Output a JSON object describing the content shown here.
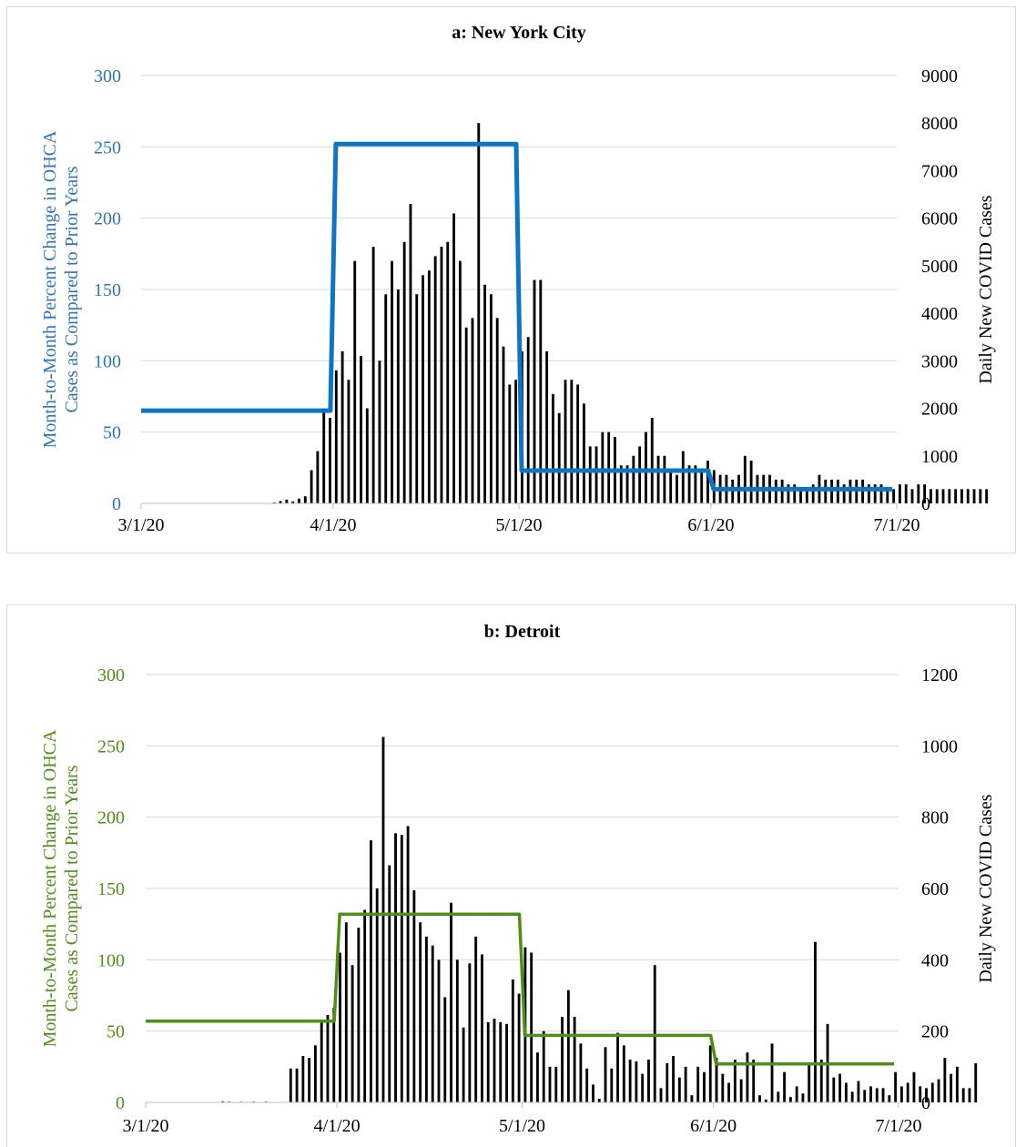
{
  "chart_data": [
    {
      "type": "bar",
      "title": "a: New York City",
      "x_tick_labels": [
        "3/1/20",
        "4/1/20",
        "5/1/20",
        "6/1/20",
        "7/1/20"
      ],
      "x_range": [
        "3/1/20",
        "7/1/20"
      ],
      "ylabel_left": "Month-to-Month Percent Change in OHCA Cases as Compared to Prior Years",
      "ylabel_right": "Daily New COVID Cases",
      "ylim_left": [
        0,
        300
      ],
      "ylim_right": [
        0,
        9000
      ],
      "yticks_left": [
        0,
        50,
        100,
        150,
        200,
        250,
        300
      ],
      "yticks_right": [
        0,
        1000,
        2000,
        3000,
        4000,
        5000,
        6000,
        7000,
        8000,
        9000
      ],
      "grid": true,
      "legend": "none",
      "line_color": "#0f74c4",
      "axis_left_color": "#2e75b6",
      "bar_color": "#000000",
      "bars_start_date": "3/1/20",
      "daily_new_cases": [
        0,
        0,
        0,
        0,
        0,
        0,
        0,
        0,
        0,
        0,
        0,
        0,
        0,
        0,
        0,
        0,
        0,
        0,
        0,
        0,
        0,
        20,
        50,
        80,
        40,
        100,
        150,
        700,
        1100,
        2000,
        1800,
        2800,
        3200,
        2600,
        5100,
        3100,
        2000,
        5400,
        3000,
        4400,
        5100,
        4500,
        5500,
        6300,
        4400,
        4800,
        4900,
        5200,
        5400,
        5500,
        6100,
        5100,
        3700,
        3900,
        8000,
        4600,
        4400,
        3900,
        3300,
        2500,
        2600,
        3200,
        3500,
        4700,
        4700,
        3200,
        2300,
        1900,
        2600,
        2600,
        2500,
        2100,
        1200,
        1200,
        1500,
        1500,
        1400,
        800,
        800,
        1000,
        1200,
        1500,
        1800,
        1000,
        1000,
        700,
        600,
        1100,
        800,
        800,
        700,
        900,
        700,
        600,
        600,
        500,
        600,
        1000,
        900,
        600,
        600,
        600,
        500,
        500,
        400,
        400,
        300,
        300,
        400,
        600,
        500,
        500,
        500,
        400,
        500,
        500,
        500,
        400,
        400,
        400,
        300,
        300,
        400,
        400,
        300,
        400,
        400,
        300,
        300,
        300,
        300,
        300,
        300,
        300,
        300,
        300,
        300
      ],
      "ohca_monthly_pct_change": [
        {
          "month": "March",
          "value": 65
        },
        {
          "month": "April",
          "value": 252
        },
        {
          "month": "May",
          "value": 23
        },
        {
          "month": "June",
          "value": 10
        }
      ]
    },
    {
      "type": "bar",
      "title": "b: Detroit",
      "x_tick_labels": [
        "3/1/20",
        "4/1/20",
        "5/1/20",
        "6/1/20",
        "7/1/20"
      ],
      "x_range": [
        "3/1/20",
        "7/1/20"
      ],
      "ylabel_left": "Month-to-Month Percent Change in OHCA Cases as Compared to Prior Years",
      "ylabel_right": "Daily New COVID Cases",
      "ylim_left": [
        0,
        300
      ],
      "ylim_right": [
        0,
        1200
      ],
      "yticks_left": [
        0,
        50,
        100,
        150,
        200,
        250,
        300
      ],
      "yticks_right": [
        0,
        200,
        400,
        600,
        800,
        1000,
        1200
      ],
      "grid": true,
      "legend": "none",
      "line_color": "#4e8f17",
      "axis_left_color": "#4e8f17",
      "bar_color": "#000000",
      "bars_start_date": "3/1/20",
      "daily_new_cases": [
        0,
        0,
        0,
        0,
        0,
        0,
        0,
        0,
        0,
        0,
        0,
        0,
        3,
        2,
        0,
        2,
        0,
        2,
        0,
        2,
        0,
        0,
        0,
        95,
        95,
        130,
        125,
        160,
        225,
        245,
        265,
        420,
        505,
        385,
        490,
        540,
        735,
        600,
        1025,
        665,
        755,
        750,
        775,
        595,
        505,
        465,
        440,
        400,
        295,
        560,
        400,
        210,
        390,
        465,
        415,
        225,
        235,
        225,
        220,
        345,
        305,
        435,
        420,
        140,
        200,
        100,
        100,
        240,
        315,
        240,
        165,
        95,
        50,
        10,
        155,
        95,
        195,
        160,
        120,
        115,
        80,
        120,
        385,
        40,
        110,
        130,
        70,
        100,
        20,
        100,
        85,
        160,
        125,
        80,
        55,
        120,
        65,
        140,
        120,
        20,
        8,
        165,
        30,
        85,
        15,
        45,
        25,
        110,
        450,
        120,
        220,
        70,
        80,
        55,
        30,
        60,
        35,
        45,
        40,
        40,
        20,
        85,
        45,
        55,
        85,
        45,
        40,
        55,
        65,
        125,
        80,
        100,
        40,
        40,
        110
      ],
      "ohca_monthly_pct_change": [
        {
          "month": "March",
          "value": 57
        },
        {
          "month": "April",
          "value": 132
        },
        {
          "month": "May",
          "value": 47
        },
        {
          "month": "June",
          "value": 27
        }
      ]
    }
  ]
}
